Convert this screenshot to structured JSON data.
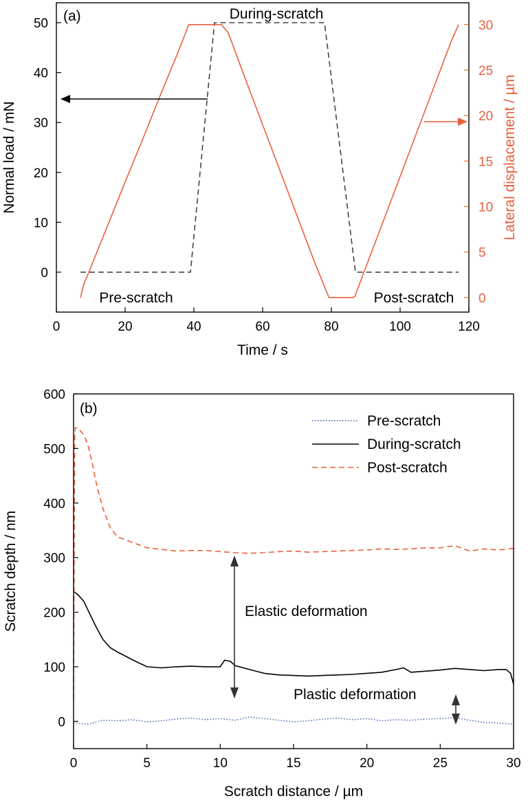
{
  "chart_data": [
    {
      "panel": "(a)",
      "type": "line",
      "xlabel": "Time / s",
      "ylabel": "Normal load / mN",
      "y2label": "Lateral displacement / µm",
      "xlim": [
        0,
        120
      ],
      "ylim": [
        -8,
        54
      ],
      "y2lim": [
        -1.6,
        32.4
      ],
      "xticks": [
        "0",
        "20",
        "40",
        "60",
        "80",
        "100",
        "120"
      ],
      "yticks": [
        "0",
        "10",
        "20",
        "30",
        "40",
        "50"
      ],
      "y2ticks": [
        "0",
        "5",
        "10",
        "15",
        "20",
        "25",
        "30"
      ],
      "annotations": {
        "top": "During-scratch",
        "left": "Pre-scratch",
        "right": "Post-scratch"
      },
      "series": [
        {
          "role": "normal_load",
          "axis": "left",
          "style": "dashed",
          "color": "#444444",
          "x": [
            7,
            39,
            46,
            78,
            87,
            117
          ],
          "y": [
            0,
            0,
            50,
            50,
            0,
            0
          ]
        },
        {
          "role": "lateral_displacement",
          "axis": "right",
          "style": "solid",
          "color": "#e8603c",
          "x": [
            7,
            8,
            10,
            15,
            20,
            25,
            30,
            35,
            37.5,
            38.5,
            46,
            48,
            50,
            55,
            60,
            65,
            70,
            75,
            78,
            79.3,
            86,
            86.8,
            87.3,
            90,
            95,
            100,
            105,
            110,
            115,
            117
          ],
          "y": [
            0,
            1.5,
            3.3,
            8,
            12.7,
            17.3,
            22,
            26.6,
            29,
            30,
            30,
            30,
            29.1,
            24,
            19,
            14,
            9,
            4,
            1.2,
            0,
            0,
            0.1,
            0.6,
            3.3,
            8.3,
            13.3,
            18.3,
            23.3,
            28.3,
            30
          ]
        }
      ]
    },
    {
      "panel": "(b)",
      "type": "line",
      "xlabel": "Scratch distance / µm",
      "ylabel": "Scratch depth / nm",
      "xlim": [
        0,
        30
      ],
      "ylim": [
        -50,
        600
      ],
      "xticks": [
        "0",
        "5",
        "10",
        "15",
        "20",
        "25",
        "30"
      ],
      "yticks": [
        "0",
        "100",
        "200",
        "300",
        "400",
        "500",
        "600"
      ],
      "legend": {
        "position": "top-right"
      },
      "annotations": {
        "elastic": "Elastic deformation",
        "plastic": "Plastic deformation"
      },
      "series": [
        {
          "name": "Pre-scratch",
          "style": "dotted",
          "color": "#2f55b4",
          "x": [
            0,
            1,
            2,
            3,
            4,
            5,
            6,
            7,
            8,
            9,
            10,
            11,
            12,
            13,
            14,
            15,
            16,
            17,
            18,
            19,
            20,
            21,
            22,
            23,
            24,
            25,
            26,
            27,
            28,
            29,
            30
          ],
          "y": [
            -3,
            -5,
            2,
            1,
            3,
            -1,
            1,
            4,
            6,
            3,
            5,
            2,
            8,
            5,
            2,
            -1,
            1,
            4,
            6,
            3,
            5,
            1,
            3,
            2,
            4,
            5,
            7,
            2,
            -2,
            -3,
            -5
          ]
        },
        {
          "name": "During-scratch",
          "style": "solid",
          "color": "#000000",
          "x": [
            0,
            0.3,
            0.7,
            1,
            1.5,
            2,
            2.5,
            3,
            3.5,
            4,
            5,
            6,
            7,
            8,
            9,
            10,
            10.3,
            10.7,
            11,
            12,
            13,
            14,
            15,
            16,
            17,
            18,
            19,
            20,
            21,
            22,
            22.5,
            23,
            24,
            25,
            26,
            27,
            28,
            29,
            29.5,
            29.8,
            30
          ],
          "y": [
            238,
            232,
            220,
            203,
            175,
            150,
            135,
            127,
            120,
            113,
            100,
            98,
            100,
            101,
            100,
            100,
            112,
            110,
            102,
            95,
            88,
            85,
            84,
            83,
            84,
            85,
            86,
            88,
            90,
            95,
            98,
            90,
            92,
            94,
            97,
            95,
            93,
            95,
            95,
            88,
            68
          ]
        },
        {
          "name": "Post-scratch",
          "style": "dashed",
          "color": "#e8603c",
          "x": [
            0,
            0.08,
            0.12,
            0.2,
            0.4,
            0.7,
            1,
            1.3,
            1.6,
            2,
            2.5,
            3,
            3.5,
            4,
            5,
            6,
            7,
            8,
            9,
            10,
            11,
            12,
            13,
            14,
            15,
            16,
            17,
            18,
            19,
            20,
            21,
            22,
            23,
            24,
            25,
            26,
            27,
            28,
            29,
            30
          ],
          "y": [
            40,
            520,
            538,
            538,
            534,
            525,
            505,
            470,
            430,
            390,
            355,
            338,
            333,
            328,
            318,
            315,
            312,
            313,
            313,
            311,
            309,
            308,
            309,
            311,
            312,
            310,
            311,
            312,
            313,
            314,
            316,
            315,
            316,
            318,
            318,
            322,
            312,
            316,
            314,
            317
          ]
        }
      ]
    }
  ],
  "labels": {
    "panel_a": "(a)",
    "panel_b": "(b)"
  }
}
